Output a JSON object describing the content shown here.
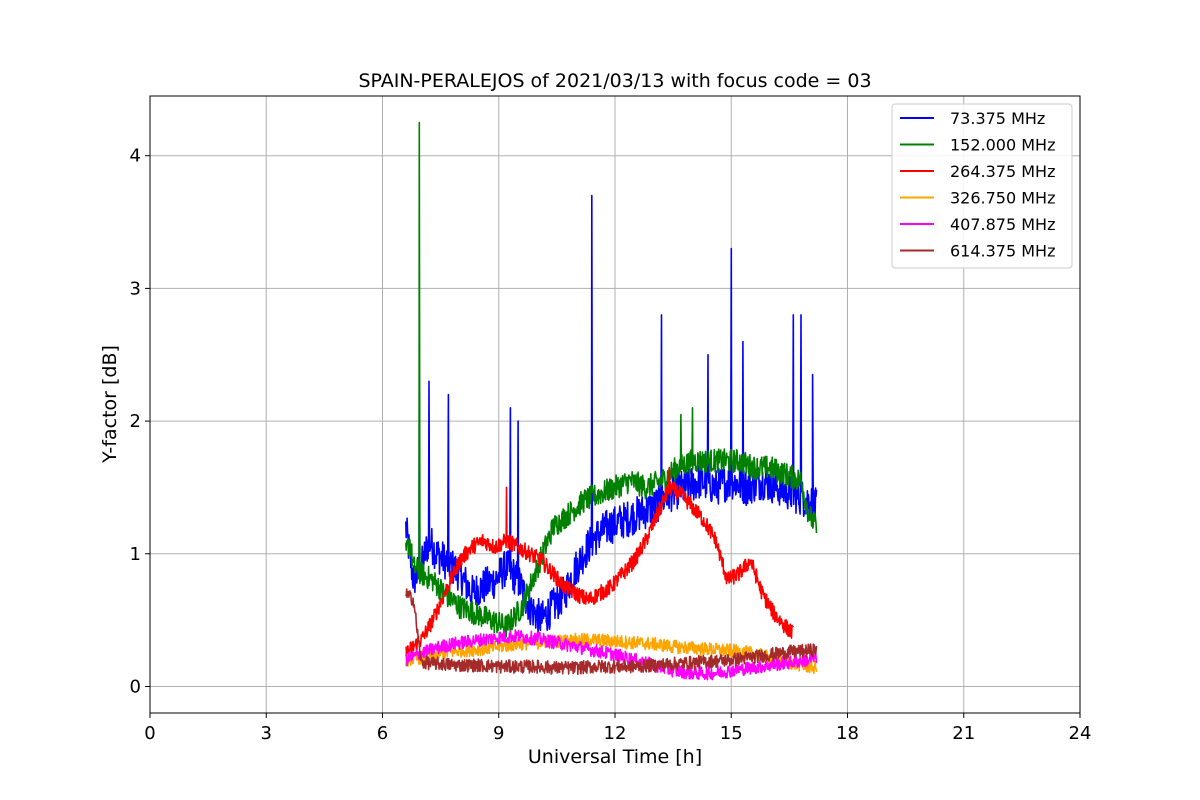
{
  "chart_data": {
    "type": "line",
    "title": "SPAIN-PERALEJOS of 2021/03/13 with focus code = 03",
    "xlabel": "Universal Time [h]",
    "ylabel": "Y-factor [dB]",
    "xlim": [
      0,
      24
    ],
    "ylim": [
      -0.2,
      4.45
    ],
    "xticks": [
      "0",
      "3",
      "6",
      "9",
      "12",
      "15",
      "18",
      "21",
      "24"
    ],
    "yticks": [
      "0",
      "1",
      "2",
      "3",
      "4"
    ],
    "grid": true,
    "legend_position": "top-right",
    "series": [
      {
        "name": " 73.375 MHz",
        "color": "#0000ff",
        "x": [
          6.6,
          6.7,
          6.8,
          7.0,
          7.2,
          7.4,
          7.6,
          7.8,
          8.0,
          8.3,
          8.6,
          8.9,
          9.2,
          9.5,
          9.8,
          10.1,
          10.4,
          10.7,
          11.0,
          11.4,
          11.8,
          12.2,
          12.6,
          13.0,
          13.4,
          13.8,
          14.2,
          14.6,
          15.0,
          15.4,
          15.8,
          16.2,
          16.6,
          17.0,
          17.2
        ],
        "y": [
          1.2,
          1.0,
          0.8,
          0.9,
          1.1,
          1.0,
          0.95,
          0.9,
          0.85,
          0.7,
          0.75,
          0.8,
          0.9,
          0.8,
          0.6,
          0.5,
          0.6,
          0.7,
          0.9,
          1.1,
          1.2,
          1.25,
          1.3,
          1.35,
          1.45,
          1.5,
          1.55,
          1.5,
          1.55,
          1.5,
          1.55,
          1.5,
          1.45,
          1.4,
          1.35
        ],
        "spikes": [
          [
            6.95,
            2.2
          ],
          [
            7.2,
            2.3
          ],
          [
            7.7,
            2.2
          ],
          [
            9.3,
            2.1
          ],
          [
            9.5,
            2.0
          ],
          [
            11.4,
            3.7
          ],
          [
            13.2,
            2.8
          ],
          [
            14.4,
            2.5
          ],
          [
            15.0,
            3.3
          ],
          [
            15.3,
            2.6
          ],
          [
            16.6,
            2.8
          ],
          [
            16.8,
            2.8
          ],
          [
            17.1,
            2.35
          ]
        ]
      },
      {
        "name": "152.000 MHz",
        "color": "#008000",
        "x": [
          6.6,
          6.7,
          6.8,
          7.0,
          7.3,
          7.6,
          8.0,
          8.4,
          8.8,
          9.2,
          9.6,
          10.0,
          10.4,
          10.8,
          11.2,
          11.6,
          12.0,
          12.4,
          12.8,
          13.2,
          13.6,
          14.0,
          14.4,
          14.8,
          15.2,
          15.6,
          16.0,
          16.4,
          16.8,
          17.0,
          17.2
        ],
        "y": [
          1.0,
          1.1,
          0.9,
          0.85,
          0.8,
          0.7,
          0.6,
          0.55,
          0.5,
          0.45,
          0.6,
          0.9,
          1.2,
          1.3,
          1.4,
          1.45,
          1.5,
          1.55,
          1.5,
          1.55,
          1.65,
          1.7,
          1.7,
          1.7,
          1.7,
          1.65,
          1.65,
          1.6,
          1.55,
          1.3,
          1.2
        ],
        "spikes": [
          [
            6.95,
            4.25
          ],
          [
            13.7,
            2.05
          ],
          [
            14.0,
            2.1
          ]
        ]
      },
      {
        "name": "264.375 MHz",
        "color": "#ff0000",
        "x": [
          6.6,
          6.8,
          7.0,
          7.3,
          7.6,
          8.0,
          8.3,
          8.6,
          8.9,
          9.2,
          9.5,
          9.8,
          10.1,
          10.4,
          10.7,
          11.0,
          11.3,
          11.6,
          11.9,
          12.2,
          12.5,
          12.8,
          13.1,
          13.4,
          13.7,
          14.0,
          14.3,
          14.6,
          14.9,
          15.2,
          15.5,
          15.8,
          16.1,
          16.4,
          16.6
        ],
        "y": [
          0.25,
          0.3,
          0.35,
          0.5,
          0.7,
          0.95,
          1.05,
          1.1,
          1.05,
          1.1,
          1.05,
          1.0,
          0.95,
          0.85,
          0.75,
          0.7,
          0.65,
          0.7,
          0.75,
          0.85,
          0.95,
          1.1,
          1.3,
          1.5,
          1.45,
          1.35,
          1.25,
          1.1,
          0.8,
          0.85,
          0.95,
          0.7,
          0.55,
          0.45,
          0.4
        ],
        "spikes": [
          [
            9.2,
            1.5
          ],
          [
            13.4,
            1.65
          ]
        ]
      },
      {
        "name": "326.750 MHz",
        "color": "#ffa500",
        "x": [
          6.6,
          7.0,
          7.5,
          8.0,
          8.5,
          9.0,
          9.5,
          10.0,
          10.5,
          11.0,
          11.5,
          12.0,
          12.5,
          13.0,
          13.5,
          14.0,
          14.5,
          15.0,
          15.5,
          16.0,
          16.5,
          17.0,
          17.2
        ],
        "y": [
          0.2,
          0.22,
          0.25,
          0.27,
          0.28,
          0.3,
          0.32,
          0.33,
          0.34,
          0.35,
          0.35,
          0.34,
          0.33,
          0.32,
          0.3,
          0.29,
          0.28,
          0.27,
          0.25,
          0.22,
          0.18,
          0.15,
          0.14
        ],
        "spikes": []
      },
      {
        "name": "407.875 MHz",
        "color": "#ff00ff",
        "x": [
          6.6,
          7.0,
          7.5,
          8.0,
          8.5,
          9.0,
          9.5,
          10.0,
          10.5,
          11.0,
          11.5,
          12.0,
          12.5,
          13.0,
          13.5,
          14.0,
          14.5,
          15.0,
          15.5,
          16.0,
          16.5,
          17.0,
          17.2
        ],
        "y": [
          0.2,
          0.25,
          0.3,
          0.33,
          0.35,
          0.37,
          0.38,
          0.36,
          0.33,
          0.3,
          0.27,
          0.24,
          0.2,
          0.16,
          0.12,
          0.1,
          0.1,
          0.12,
          0.14,
          0.16,
          0.18,
          0.2,
          0.22
        ],
        "spikes": []
      },
      {
        "name": "614.375 MHz",
        "color": "#a52a2a",
        "x": [
          6.6,
          6.8,
          7.0,
          7.5,
          8.0,
          8.5,
          9.0,
          9.5,
          10.0,
          10.5,
          11.0,
          11.5,
          12.0,
          12.5,
          13.0,
          13.5,
          14.0,
          14.5,
          15.0,
          15.5,
          16.0,
          16.5,
          17.0,
          17.2
        ],
        "y": [
          0.7,
          0.65,
          0.18,
          0.17,
          0.16,
          0.16,
          0.15,
          0.15,
          0.15,
          0.14,
          0.14,
          0.15,
          0.15,
          0.15,
          0.16,
          0.17,
          0.18,
          0.19,
          0.2,
          0.22,
          0.24,
          0.26,
          0.27,
          0.28
        ],
        "spikes": []
      }
    ]
  }
}
